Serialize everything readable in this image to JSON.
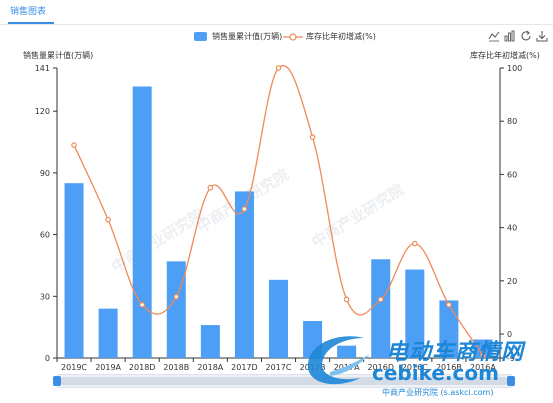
{
  "tabs": [
    {
      "label": "销售图表"
    }
  ],
  "toolbox": {
    "icons": [
      "line-chart-icon",
      "bar-chart-icon",
      "restore-icon",
      "download-icon"
    ]
  },
  "watermark": {
    "text": "中商产业研究院"
  },
  "logo": {
    "cn": "电动车商情网",
    "en": "cebike.com"
  },
  "source": "中商产业研究院 (s.askci.com)",
  "colors": {
    "bar": "#4d9ef5",
    "line": "#ee8a5b",
    "accent": "#3a8ee6"
  },
  "chart_data": {
    "type": "bar",
    "categories": [
      "2019C",
      "2019A",
      "2018D",
      "2018B",
      "2018A",
      "2017D",
      "2017C",
      "2017B",
      "2017A",
      "2016D",
      "2016C",
      "2016B",
      "2016A"
    ],
    "series": [
      {
        "name": "销售量累计值(万辆)",
        "type": "bar",
        "axis": "left",
        "values": [
          85,
          24,
          132,
          47,
          16,
          81,
          38,
          18,
          6,
          48,
          43,
          28,
          9
        ]
      },
      {
        "name": "库存比年初增减(%)",
        "type": "line",
        "axis": "right",
        "smooth": true,
        "values": [
          71,
          43,
          11,
          14,
          55,
          47,
          100,
          74,
          13,
          13,
          34,
          11,
          -8
        ]
      }
    ],
    "ylabel_left": "销售量累计值(万辆)",
    "ylabel_right": "库存比年初增减(%)",
    "ylim_left": [
      0,
      141
    ],
    "ylim_right": [
      -9,
      100
    ],
    "yticks_left": [
      0,
      30,
      60,
      90,
      120,
      141
    ],
    "yticks_right": [
      -9,
      0,
      20,
      40,
      60,
      80,
      100
    ],
    "legend": "top-center",
    "grid": false
  }
}
